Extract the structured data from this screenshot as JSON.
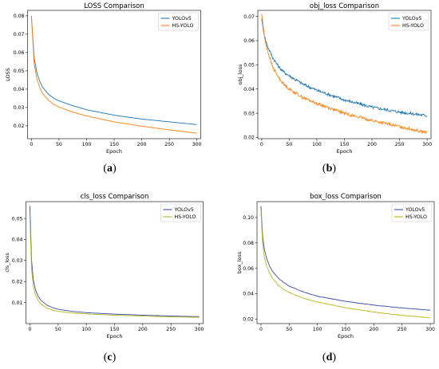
{
  "chart_data": [
    {
      "id": "a",
      "type": "line",
      "title": "LOSS Comparison",
      "xlabel": "Epoch",
      "ylabel": "LOSS",
      "xlim": [
        -7,
        307
      ],
      "ylim": [
        0.013,
        0.083
      ],
      "xticks": [
        0,
        50,
        100,
        150,
        200,
        250,
        300
      ],
      "yticks": [
        0.02,
        0.03,
        0.04,
        0.05,
        0.06,
        0.07,
        0.08
      ],
      "ytick_labels": [
        "0.02",
        "0.03",
        "0.04",
        "0.05",
        "0.06",
        "0.07",
        "0.08"
      ],
      "legend_position": "top-right",
      "caption": "a",
      "series": [
        {
          "name": "YOLOv5",
          "color": "#1f77b4",
          "noise": 8e-05,
          "x": [
            0,
            5,
            10,
            15,
            20,
            30,
            40,
            50,
            75,
            100,
            150,
            200,
            250,
            300
          ],
          "y": [
            0.08,
            0.057,
            0.049,
            0.0445,
            0.0412,
            0.0375,
            0.0352,
            0.0336,
            0.031,
            0.0288,
            0.0258,
            0.0237,
            0.0222,
            0.0207
          ]
        },
        {
          "name": "HS-YOLO",
          "color": "#ff7f0e",
          "noise": 8e-05,
          "x": [
            0,
            5,
            10,
            15,
            20,
            30,
            40,
            50,
            75,
            100,
            150,
            200,
            250,
            300
          ],
          "y": [
            0.08,
            0.054,
            0.0455,
            0.041,
            0.0378,
            0.0342,
            0.0318,
            0.0302,
            0.0275,
            0.0254,
            0.0222,
            0.0198,
            0.0178,
            0.016
          ]
        }
      ]
    },
    {
      "id": "b",
      "type": "line",
      "title": "obj_loss Comparison",
      "xlabel": "Epoch",
      "ylabel": "obj_loss",
      "xlim": [
        -7,
        307
      ],
      "ylim": [
        0.0195,
        0.0725
      ],
      "xticks": [
        0,
        50,
        100,
        150,
        200,
        250,
        300
      ],
      "yticks": [
        0.02,
        0.03,
        0.04,
        0.05,
        0.06,
        0.07
      ],
      "ytick_labels": [
        "0.02",
        "0.03",
        "0.04",
        "0.05",
        "0.06",
        "0.07"
      ],
      "legend_position": "top-right",
      "caption": "b",
      "series": [
        {
          "name": "YOLOv5",
          "color": "#1f77b4",
          "noise": 0.0006,
          "x": [
            0,
            5,
            10,
            15,
            20,
            30,
            40,
            50,
            75,
            100,
            150,
            200,
            250,
            300
          ],
          "y": [
            0.069,
            0.062,
            0.058,
            0.0555,
            0.053,
            0.0495,
            0.047,
            0.0455,
            0.042,
            0.0395,
            0.0355,
            0.0325,
            0.0305,
            0.029
          ]
        },
        {
          "name": "HS-YOLO",
          "color": "#ff7f0e",
          "noise": 0.0006,
          "x": [
            0,
            5,
            10,
            15,
            20,
            30,
            40,
            50,
            75,
            100,
            150,
            200,
            250,
            300
          ],
          "y": [
            0.071,
            0.0615,
            0.0565,
            0.0525,
            0.049,
            0.045,
            0.042,
            0.04,
            0.0365,
            0.034,
            0.03,
            0.027,
            0.0245,
            0.022
          ]
        }
      ]
    },
    {
      "id": "c",
      "type": "line",
      "title": "cls_loss Comparison",
      "xlabel": "Epoch",
      "ylabel": "cls_loss",
      "xlim": [
        -7,
        307
      ],
      "ylim": [
        0.0,
        0.058
      ],
      "xticks": [
        0,
        50,
        100,
        150,
        200,
        250,
        300
      ],
      "yticks": [
        0.01,
        0.02,
        0.03,
        0.04,
        0.05
      ],
      "ytick_labels": [
        "0.01",
        "0.02",
        "0.03",
        "0.04",
        "0.05"
      ],
      "legend_position": "top-right",
      "caption": "c",
      "series": [
        {
          "name": "YOLOv5",
          "color": "#3c4fa8",
          "noise": 4e-05,
          "x": [
            0,
            3,
            6,
            10,
            15,
            20,
            30,
            40,
            50,
            75,
            100,
            150,
            200,
            250,
            300
          ],
          "y": [
            0.056,
            0.03,
            0.021,
            0.016,
            0.0128,
            0.011,
            0.0088,
            0.0076,
            0.0068,
            0.0058,
            0.0052,
            0.0045,
            0.004,
            0.0036,
            0.0033
          ]
        },
        {
          "name": "HS-YOLO",
          "color": "#b5b81a",
          "noise": 4e-05,
          "x": [
            0,
            3,
            6,
            10,
            15,
            20,
            30,
            40,
            50,
            75,
            100,
            150,
            200,
            250,
            300
          ],
          "y": [
            0.05,
            0.026,
            0.018,
            0.0135,
            0.0108,
            0.0093,
            0.0074,
            0.0064,
            0.0058,
            0.005,
            0.0046,
            0.004,
            0.0036,
            0.0032,
            0.003
          ]
        }
      ]
    },
    {
      "id": "d",
      "type": "line",
      "title": "box_loss Comparison",
      "xlabel": "Epoch",
      "ylabel": "box_loss",
      "xlim": [
        -7,
        307
      ],
      "ylim": [
        0.0165,
        0.1125
      ],
      "xticks": [
        0,
        50,
        100,
        150,
        200,
        250,
        300
      ],
      "yticks": [
        0.02,
        0.04,
        0.06,
        0.08,
        0.1
      ],
      "ytick_labels": [
        "0.02",
        "0.04",
        "0.06",
        "0.08",
        "0.10"
      ],
      "legend_position": "top-right",
      "caption": "d",
      "series": [
        {
          "name": "YOLOv5",
          "color": "#3c4fa8",
          "noise": 0.0002,
          "x": [
            0,
            3,
            6,
            10,
            15,
            20,
            30,
            40,
            50,
            75,
            100,
            150,
            200,
            250,
            300
          ],
          "y": [
            0.109,
            0.085,
            0.075,
            0.068,
            0.062,
            0.058,
            0.0525,
            0.049,
            0.046,
            0.0415,
            0.038,
            0.034,
            0.031,
            0.0288,
            0.027
          ]
        },
        {
          "name": "HS-YOLO",
          "color": "#b5b81a",
          "noise": 0.0002,
          "x": [
            0,
            3,
            6,
            10,
            15,
            20,
            30,
            40,
            50,
            75,
            100,
            150,
            200,
            250,
            300
          ],
          "y": [
            0.105,
            0.079,
            0.069,
            0.062,
            0.0565,
            0.0525,
            0.047,
            0.0435,
            0.041,
            0.0365,
            0.0335,
            0.029,
            0.0255,
            0.023,
            0.021
          ]
        }
      ]
    }
  ]
}
